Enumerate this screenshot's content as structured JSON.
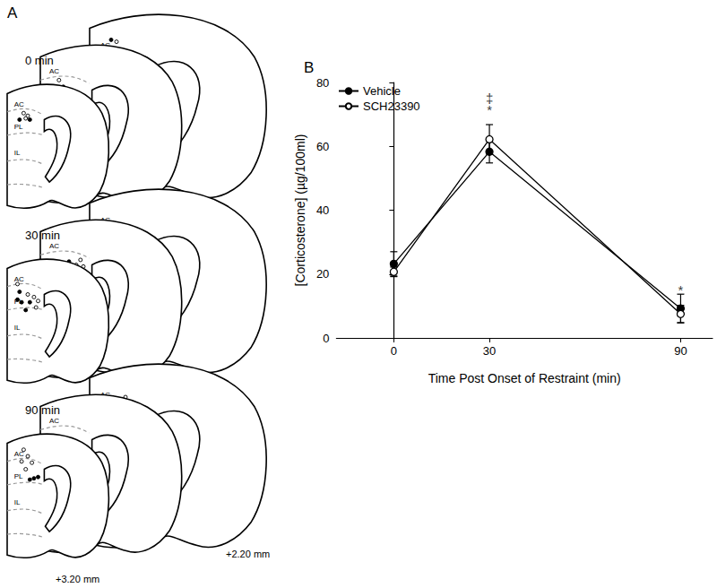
{
  "chart_data": {
    "type": "line",
    "panel_label": "B",
    "x_label": "Time Post Onset of Restraint (min)",
    "y_label": "[Corticosterone] (µg/100ml)",
    "x": [
      0,
      30,
      90
    ],
    "xlim": [
      -18,
      100
    ],
    "xticks": [
      0,
      30,
      90
    ],
    "ylim": [
      0,
      80
    ],
    "yticks": [
      0,
      20,
      40,
      60,
      80
    ],
    "grid": false,
    "legend": "upper left",
    "series": [
      {
        "name": "Vehicle",
        "color": "#000000",
        "marker": "filled",
        "line_style": "solid",
        "values": [
          23.2,
          58.3,
          9.2
        ],
        "errors": [
          3.8,
          3.5,
          4.5
        ]
      },
      {
        "name": "SCH23390",
        "color": "#000000",
        "marker": "open",
        "line_style": "solid",
        "values": [
          20.7,
          62.2,
          7.5
        ],
        "errors": [
          1.5,
          4.6,
          2.7
        ]
      }
    ],
    "annotations": [
      {
        "x": 30,
        "y": 75,
        "text": "‡"
      },
      {
        "x": 30,
        "y": 71.5,
        "text": "*"
      },
      {
        "x": 90,
        "y": 15,
        "text": "*"
      }
    ]
  },
  "panel_a": {
    "label": "A",
    "rows": [
      "0 min",
      "30 min",
      "90 min"
    ],
    "regions": [
      "AC",
      "PL",
      "IL"
    ],
    "levels": [
      "+3.20 mm",
      "+2.20 mm"
    ]
  }
}
